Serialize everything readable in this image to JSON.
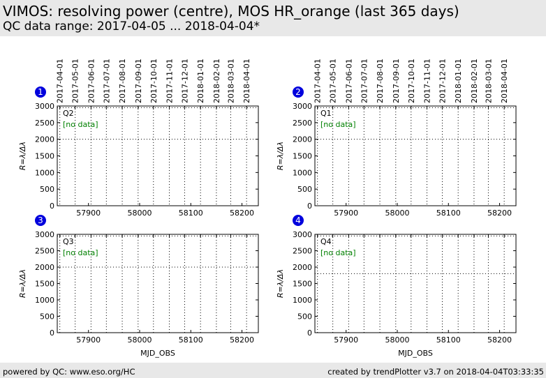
{
  "header": {
    "title": "VIMOS: resolving power (centre), MOS HR_orange (last 365 days)",
    "subtitle": "QC data range: 2017-04-05 ... 2018-04-04*"
  },
  "footer": {
    "left": "powered by QC: www.eso.org/HC",
    "right": "created by trendPlotter v3.7 on 2018-04-04T03:33:35"
  },
  "colors": {
    "badge": "#0000dd",
    "no_data": "#008000",
    "header_bg": "#e8e8e8"
  },
  "chart_data": [
    {
      "type": "scatter",
      "badge": "1",
      "panel_label": "Q2",
      "status": "[no data]",
      "ylabel": "R=λ/Δλ",
      "xlabel": "",
      "xlim": [
        57839,
        58232
      ],
      "ylim": [
        0,
        3000
      ],
      "yticks": [
        0,
        500,
        1000,
        1500,
        2000,
        2500,
        3000
      ],
      "xticks": [
        57900,
        58000,
        58100,
        58200
      ],
      "top_axis_dates": [
        "2017-04-01",
        "2017-05-01",
        "2017-06-01",
        "2017-07-01",
        "2017-08-01",
        "2017-09-01",
        "2017-10-01",
        "2017-11-01",
        "2017-12-01",
        "2018-01-01",
        "2018-02-01",
        "2018-03-01",
        "2018-04-01"
      ],
      "top_axis_mjd": [
        57844,
        57874,
        57905,
        57935,
        57966,
        57997,
        58027,
        58058,
        58088,
        58119,
        58150,
        58178,
        58209
      ],
      "reference_lines": [
        2000,
        2950
      ],
      "points": [],
      "grid": true
    },
    {
      "type": "scatter",
      "badge": "2",
      "panel_label": "Q1",
      "status": "[no data]",
      "ylabel": "R=λ/Δλ",
      "xlabel": "",
      "xlim": [
        57839,
        58232
      ],
      "ylim": [
        0,
        3000
      ],
      "yticks": [
        0,
        500,
        1000,
        1500,
        2000,
        2500,
        3000
      ],
      "xticks": [
        57900,
        58000,
        58100,
        58200
      ],
      "top_axis_dates": [
        "2017-04-01",
        "2017-05-01",
        "2017-06-01",
        "2017-07-01",
        "2017-08-01",
        "2017-09-01",
        "2017-10-01",
        "2017-11-01",
        "2017-12-01",
        "2018-01-01",
        "2018-02-01",
        "2018-03-01",
        "2018-04-01"
      ],
      "top_axis_mjd": [
        57844,
        57874,
        57905,
        57935,
        57966,
        57997,
        58027,
        58058,
        58088,
        58119,
        58150,
        58178,
        58209
      ],
      "reference_lines": [
        2000,
        2950
      ],
      "points": [],
      "grid": true
    },
    {
      "type": "scatter",
      "badge": "3",
      "panel_label": "Q3",
      "status": "[no data]",
      "ylabel": "R=λ/Δλ",
      "xlabel": "MJD_OBS",
      "xlim": [
        57839,
        58232
      ],
      "ylim": [
        0,
        3000
      ],
      "yticks": [
        0,
        500,
        1000,
        1500,
        2000,
        2500,
        3000
      ],
      "xticks": [
        57900,
        58000,
        58100,
        58200
      ],
      "top_axis_dates": [],
      "top_axis_mjd": [
        57844,
        57874,
        57905,
        57935,
        57966,
        57997,
        58027,
        58058,
        58088,
        58119,
        58150,
        58178,
        58209
      ],
      "reference_lines": [
        2000,
        2950
      ],
      "points": [],
      "grid": true
    },
    {
      "type": "scatter",
      "badge": "4",
      "panel_label": "Q4",
      "status": "[no data]",
      "ylabel": "R=λ/Δλ",
      "xlabel": "MJD_OBS",
      "xlim": [
        57839,
        58232
      ],
      "ylim": [
        0,
        3000
      ],
      "yticks": [
        0,
        500,
        1000,
        1500,
        2000,
        2500,
        3000
      ],
      "xticks": [
        57900,
        58000,
        58100,
        58200
      ],
      "top_axis_dates": [],
      "top_axis_mjd": [
        57844,
        57874,
        57905,
        57935,
        57966,
        57997,
        58027,
        58058,
        58088,
        58119,
        58150,
        58178,
        58209
      ],
      "reference_lines": [
        1800,
        2950
      ],
      "points": [],
      "grid": true
    }
  ]
}
